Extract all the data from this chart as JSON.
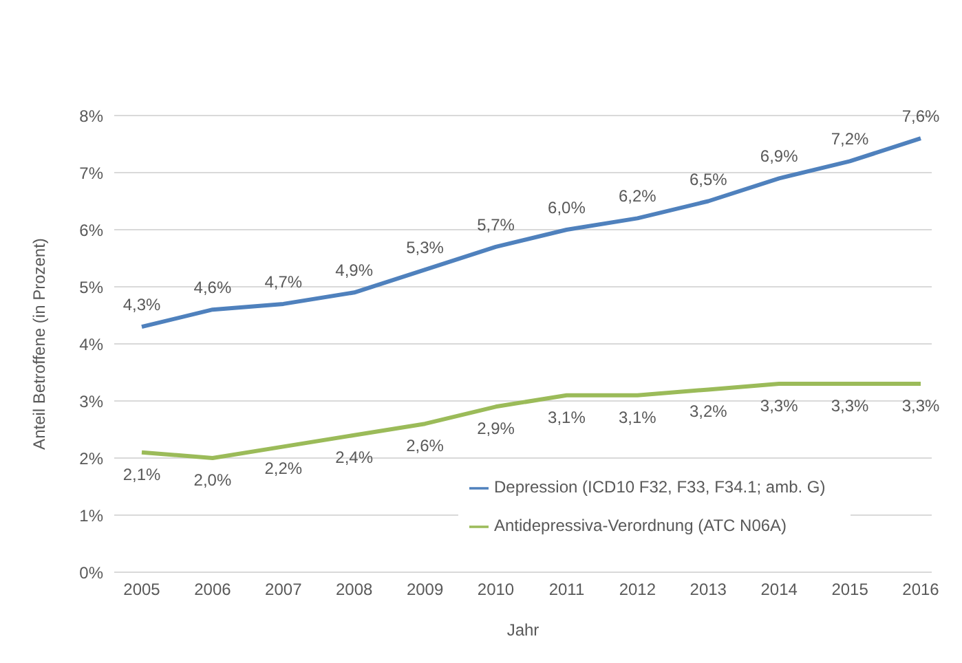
{
  "chart_data": {
    "type": "line",
    "xlabel": "Jahr",
    "ylabel": "Anteil Betroffene (in Prozent)",
    "categories": [
      "2005",
      "2006",
      "2007",
      "2008",
      "2009",
      "2010",
      "2011",
      "2012",
      "2013",
      "2014",
      "2015",
      "2016"
    ],
    "series": [
      {
        "name": "Depression (ICD10 F32, F33, F34.1; amb. G)",
        "color": "#4f81bd",
        "values": [
          4.3,
          4.6,
          4.7,
          4.9,
          5.3,
          5.7,
          6.0,
          6.2,
          6.5,
          6.9,
          7.2,
          7.6
        ],
        "value_labels": [
          "4,3%",
          "4,6%",
          "4,7%",
          "4,9%",
          "5,3%",
          "5,7%",
          "6,0%",
          "6,2%",
          "6,5%",
          "6,9%",
          "7,2%",
          "7,6%"
        ]
      },
      {
        "name": "Antidepressiva-Verordnung (ATC N06A)",
        "color": "#9bbb59",
        "values": [
          2.1,
          2.0,
          2.2,
          2.4,
          2.6,
          2.9,
          3.1,
          3.1,
          3.2,
          3.3,
          3.3,
          3.3
        ],
        "value_labels": [
          "2,1%",
          "2,0%",
          "2,2%",
          "2,4%",
          "2,6%",
          "2,9%",
          "3,1%",
          "3,1%",
          "3,2%",
          "3,3%",
          "3,3%",
          "3,3%"
        ]
      }
    ],
    "ylim": [
      0,
      8
    ],
    "yticks": [
      {
        "value": 0,
        "label": "0%"
      },
      {
        "value": 1,
        "label": "1%"
      },
      {
        "value": 2,
        "label": "2%"
      },
      {
        "value": 3,
        "label": "3%"
      },
      {
        "value": 4,
        "label": "4%"
      },
      {
        "value": 5,
        "label": "5%"
      },
      {
        "value": 6,
        "label": "6%"
      },
      {
        "value": 7,
        "label": "7%"
      },
      {
        "value": 8,
        "label": "8%"
      }
    ],
    "grid": "y",
    "legend": "bottom right",
    "marker": "none",
    "line_style": "solid"
  }
}
